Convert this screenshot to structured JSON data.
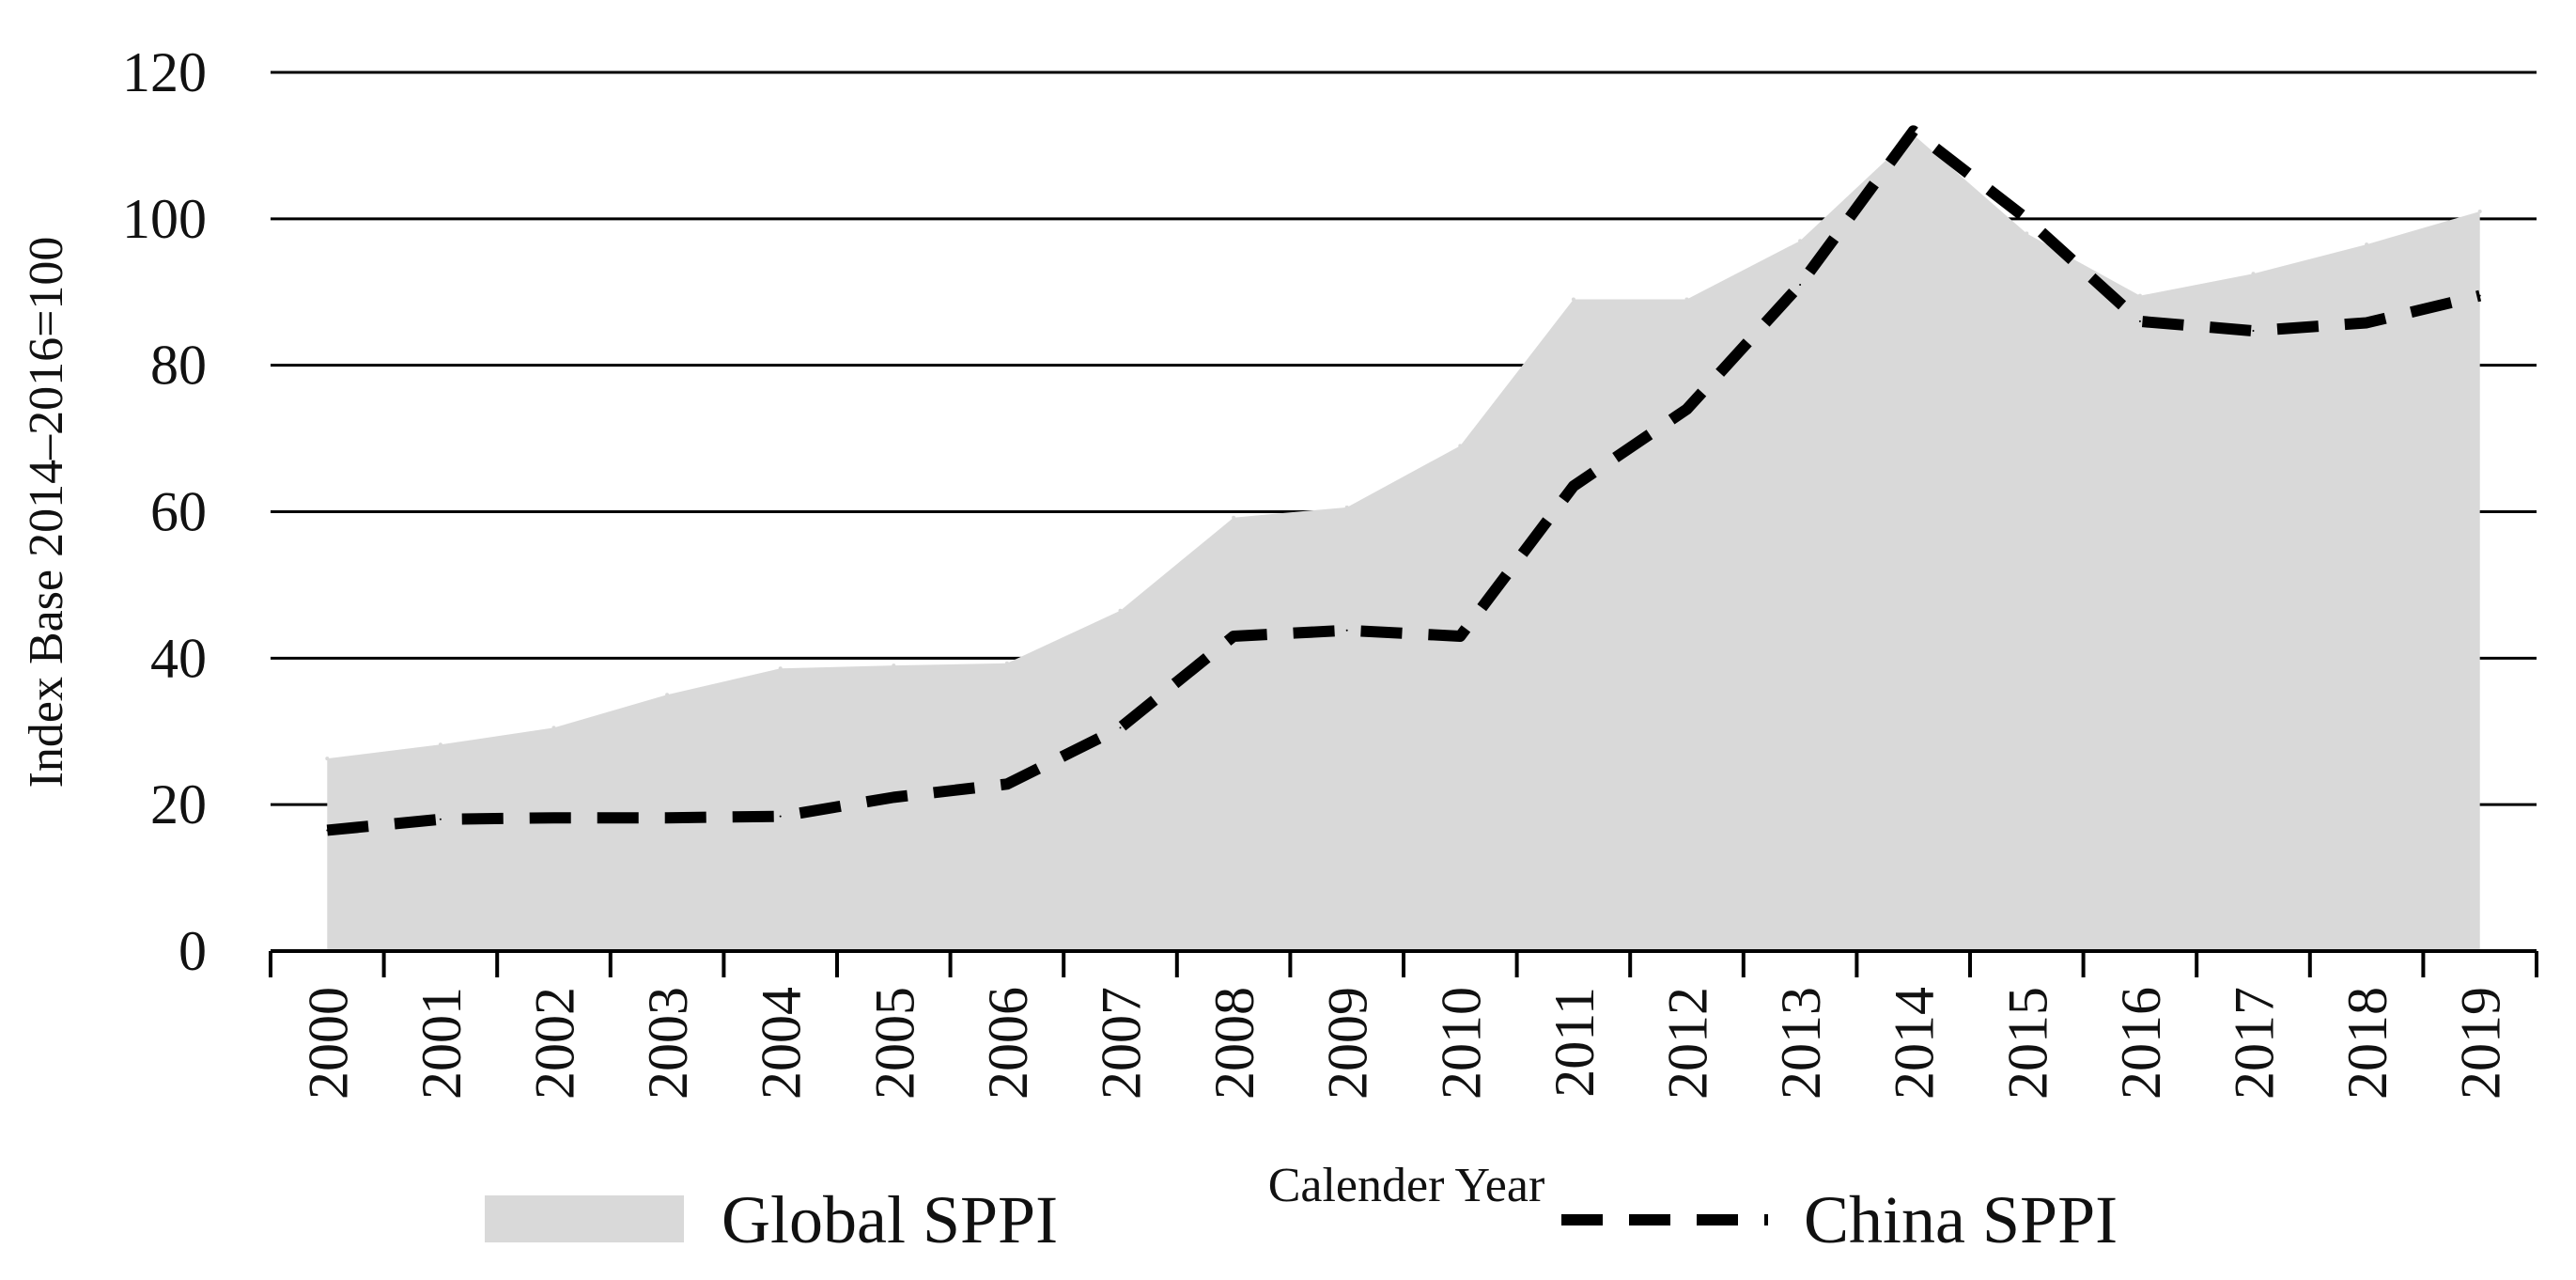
{
  "chart_data": {
    "type": "area",
    "title": "",
    "xlabel": "Calender Year",
    "ylabel": "Index Base 2014–2016=100",
    "ylim": [
      0,
      120
    ],
    "yticks": [
      "0",
      "20",
      "40",
      "60",
      "80",
      "100",
      "120"
    ],
    "grid": true,
    "legend_position": "bottom",
    "categories": [
      "2000",
      "2001",
      "2002",
      "2003",
      "2004",
      "2005",
      "2006",
      "2007",
      "2008",
      "2009",
      "2010",
      "2011",
      "2012",
      "2013",
      "2014",
      "2015",
      "2016",
      "2017",
      "2018",
      "2019"
    ],
    "series": [
      {
        "name": "Global SPPI",
        "style": "area",
        "color": "#d9d9d9",
        "values": [
          26.3,
          28.2,
          30.5,
          35.0,
          38.6,
          39.0,
          39.3,
          46.5,
          59.2,
          60.6,
          69.0,
          89.0,
          89.0,
          97.0,
          111.5,
          98.0,
          89.5,
          92.5,
          96.5,
          101.0
        ]
      },
      {
        "name": "China SPPI",
        "style": "dashed-line",
        "color": "#000000",
        "values": [
          16.5,
          18.0,
          18.2,
          18.2,
          18.4,
          21.0,
          22.8,
          30.5,
          43.0,
          43.8,
          43.0,
          63.5,
          74.0,
          91.0,
          112.0,
          100.0,
          86.0,
          84.7,
          85.8,
          89.5
        ]
      }
    ]
  }
}
